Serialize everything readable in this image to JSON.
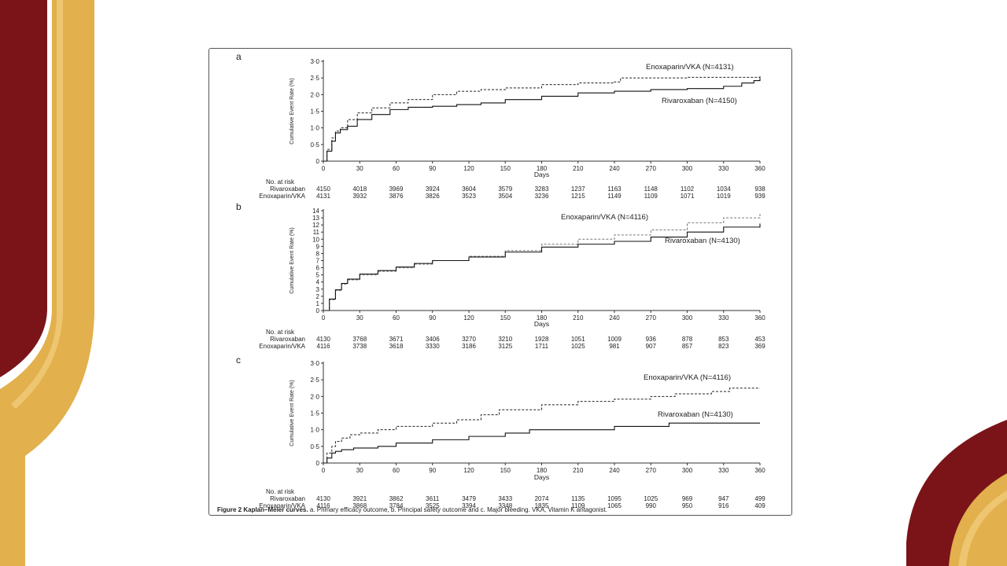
{
  "decor": {
    "maroon": "#7a1418",
    "gold": "#e2b04c",
    "gold_light": "#f3cf80"
  },
  "caption": {
    "bold": "Figure 2 Kaplan–Meier curves.",
    "text": " a. Primary efficacy outcome, b. Principal safety outcome and c. Major bleeding. VKA, Vitamin K antagonist."
  },
  "chart_data": [
    {
      "type": "line",
      "panel": "a",
      "xlabel": "Days",
      "ylabel": "Cumulative Event Rate (%)",
      "xlim": [
        0,
        360
      ],
      "ylim": [
        0,
        3.0
      ],
      "x_ticks": [
        0,
        30,
        60,
        90,
        120,
        150,
        180,
        210,
        240,
        270,
        300,
        330,
        360
      ],
      "y_ticks": [
        0,
        0.5,
        1.0,
        1.5,
        2.0,
        2.5,
        3.0
      ],
      "y_tick_labels": [
        "0",
        "0·5",
        "1·0",
        "1·5",
        "2·0",
        "2·5",
        "3·0"
      ],
      "series": [
        {
          "name": "Enoxaparin/VKA (N=4131)",
          "style": "dashed",
          "x": [
            0,
            3,
            7,
            10,
            14,
            20,
            28,
            40,
            55,
            70,
            90,
            110,
            130,
            150,
            180,
            210,
            240,
            245,
            300,
            360
          ],
          "y": [
            0,
            0.35,
            0.7,
            0.9,
            1.0,
            1.25,
            1.45,
            1.6,
            1.75,
            1.85,
            2.0,
            2.1,
            2.15,
            2.2,
            2.3,
            2.35,
            2.38,
            2.5,
            2.52,
            2.55
          ]
        },
        {
          "name": "Rivaroxaban (N=4150)",
          "style": "solid",
          "x": [
            0,
            3,
            7,
            10,
            14,
            20,
            28,
            40,
            55,
            70,
            90,
            110,
            130,
            150,
            180,
            210,
            240,
            270,
            300,
            330,
            345,
            355,
            360
          ],
          "y": [
            0,
            0.3,
            0.6,
            0.85,
            0.95,
            1.05,
            1.25,
            1.4,
            1.55,
            1.62,
            1.65,
            1.7,
            1.75,
            1.85,
            1.95,
            2.05,
            2.1,
            2.15,
            2.18,
            2.25,
            2.35,
            2.42,
            2.5
          ]
        }
      ],
      "risk_table": {
        "header": "No. at risk",
        "rows": [
          {
            "label": "Rivaroxaban",
            "values": [
              "4150",
              "4018",
              "3969",
              "3924",
              "3604",
              "3579",
              "3283",
              "1237",
              "1163",
              "1148",
              "1102",
              "1034",
              "938"
            ]
          },
          {
            "label": "Enoxaparin/VKA",
            "values": [
              "4131",
              "3932",
              "3876",
              "3826",
              "3523",
              "3504",
              "3236",
              "1215",
              "1149",
              "1109",
              "1071",
              "1019",
              "939"
            ]
          }
        ]
      }
    },
    {
      "type": "line",
      "panel": "b",
      "xlabel": "Days",
      "ylabel": "Cumulative Event Rate (%)",
      "xlim": [
        0,
        360
      ],
      "ylim": [
        0,
        14
      ],
      "x_ticks": [
        0,
        30,
        60,
        90,
        120,
        150,
        180,
        210,
        240,
        270,
        300,
        330,
        360
      ],
      "y_ticks": [
        0,
        1,
        2,
        3,
        4,
        5,
        6,
        7,
        8,
        9,
        10,
        11,
        12,
        13,
        14
      ],
      "y_tick_labels": [
        "0",
        "1",
        "2",
        "3",
        "4",
        "5",
        "6",
        "7",
        "8",
        "9",
        "10",
        "11",
        "12",
        "13",
        "14"
      ],
      "series": [
        {
          "name": "Enoxaparin/VKA (N=4116)",
          "style": "dashed",
          "x": [
            0,
            5,
            10,
            15,
            20,
            30,
            45,
            60,
            75,
            90,
            120,
            150,
            180,
            210,
            240,
            270,
            300,
            330,
            360
          ],
          "y": [
            0,
            1.5,
            2.8,
            3.7,
            4.3,
            5.0,
            5.5,
            6.0,
            6.5,
            7.0,
            7.6,
            8.4,
            9.3,
            10.0,
            10.6,
            11.3,
            12.3,
            13.0,
            13.6
          ]
        },
        {
          "name": "Rivaroxaban (N=4130)",
          "style": "solid",
          "x": [
            0,
            5,
            10,
            15,
            20,
            30,
            45,
            60,
            75,
            90,
            120,
            150,
            180,
            210,
            240,
            270,
            300,
            330,
            360
          ],
          "y": [
            0,
            1.6,
            2.9,
            3.8,
            4.4,
            5.1,
            5.6,
            6.1,
            6.6,
            7.0,
            7.5,
            8.2,
            8.9,
            9.3,
            9.7,
            10.3,
            11.0,
            11.7,
            12.2
          ]
        }
      ],
      "risk_table": {
        "header": "No. at risk",
        "rows": [
          {
            "label": "Rivaroxaban",
            "values": [
              "4130",
              "3768",
              "3671",
              "3406",
              "3270",
              "3210",
              "1928",
              "1051",
              "1009",
              "936",
              "878",
              "853",
              "453"
            ]
          },
          {
            "label": "Enoxaparin/VKA",
            "values": [
              "4116",
              "3738",
              "3618",
              "3330",
              "3186",
              "3125",
              "1711",
              "1025",
              "981",
              "907",
              "857",
              "823",
              "369"
            ]
          }
        ]
      }
    },
    {
      "type": "line",
      "panel": "c",
      "xlabel": "Days",
      "ylabel": "Cumulative Event Rate (%)",
      "xlim": [
        0,
        360
      ],
      "ylim": [
        0,
        3.0
      ],
      "x_ticks": [
        0,
        30,
        60,
        90,
        120,
        150,
        180,
        210,
        240,
        270,
        300,
        330,
        360
      ],
      "y_ticks": [
        0,
        0.5,
        1.0,
        1.5,
        2.0,
        2.5,
        3.0
      ],
      "y_tick_labels": [
        "0",
        "0·5",
        "1·0",
        "1·5",
        "2·0",
        "2·5",
        "3·0"
      ],
      "series": [
        {
          "name": "Enoxaparin/VKA (N=4116)",
          "style": "dashed",
          "x": [
            0,
            3,
            7,
            10,
            15,
            22,
            30,
            45,
            60,
            90,
            110,
            130,
            145,
            180,
            210,
            240,
            270,
            290,
            320,
            335,
            360
          ],
          "y": [
            0,
            0.3,
            0.5,
            0.65,
            0.75,
            0.85,
            0.9,
            1.0,
            1.1,
            1.2,
            1.3,
            1.45,
            1.6,
            1.75,
            1.85,
            1.92,
            2.0,
            2.08,
            2.15,
            2.25,
            2.25
          ]
        },
        {
          "name": "Rivaroxaban (N=4130)",
          "style": "solid",
          "x": [
            0,
            3,
            7,
            10,
            15,
            25,
            45,
            60,
            90,
            120,
            150,
            170,
            240,
            285,
            360
          ],
          "y": [
            0,
            0.15,
            0.3,
            0.35,
            0.4,
            0.45,
            0.5,
            0.6,
            0.7,
            0.8,
            0.9,
            1.0,
            1.1,
            1.2,
            1.2
          ]
        }
      ],
      "risk_table": {
        "header": "No. at risk",
        "rows": [
          {
            "label": "Rivaroxaban",
            "values": [
              "4130",
              "3921",
              "3862",
              "3611",
              "3479",
              "3433",
              "2074",
              "1135",
              "1095",
              "1025",
              "969",
              "947",
              "499"
            ]
          },
          {
            "label": "Enoxaparin/VKA",
            "values": [
              "4116",
              "3868",
              "3784",
              "3525",
              "3394",
              "3348",
              "1835",
              "1109",
              "1065",
              "990",
              "950",
              "916",
              "409"
            ]
          }
        ]
      }
    }
  ]
}
